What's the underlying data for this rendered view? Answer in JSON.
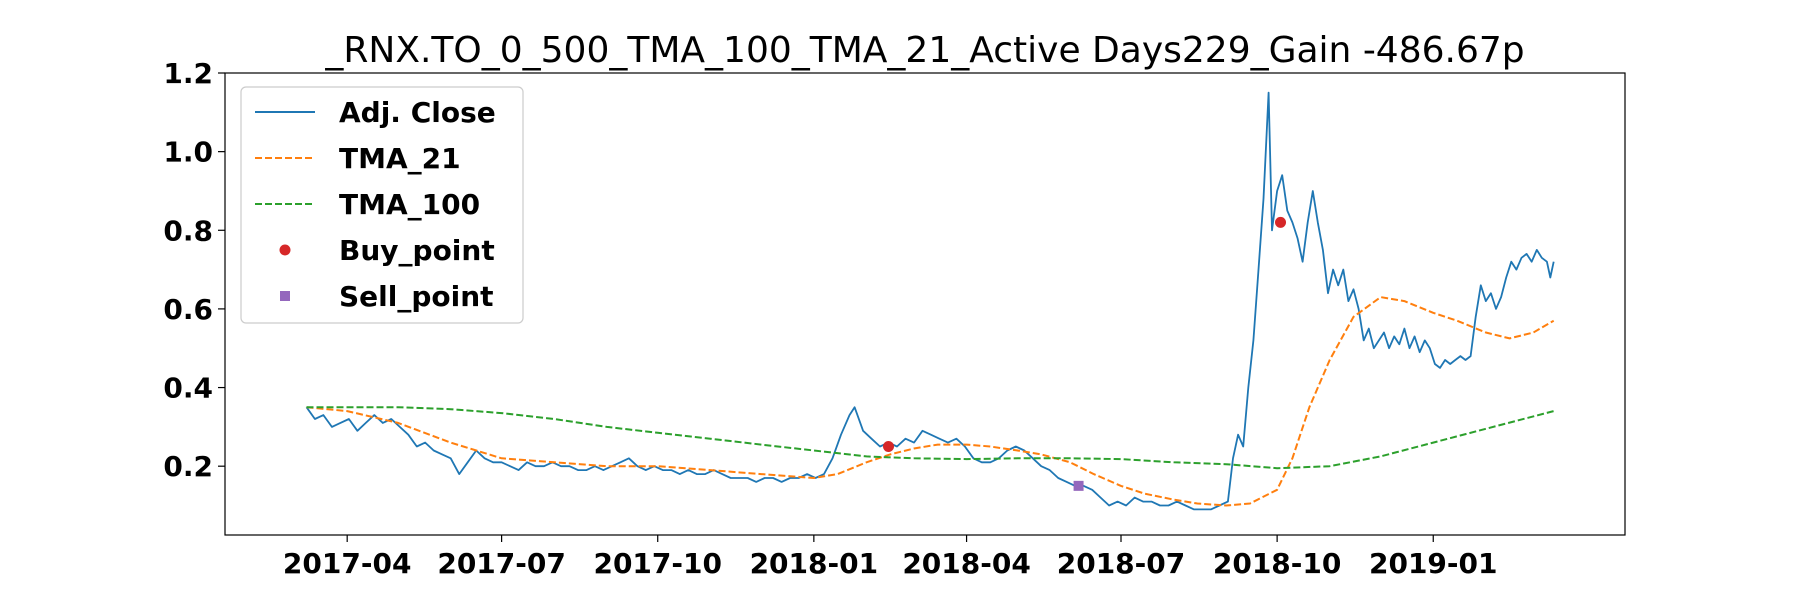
{
  "chart_data": {
    "type": "line",
    "title": "_RNX.TO_0_500_TMA_100_TMA_21_Active Days229_Gain -486.67p",
    "xlabel": "",
    "ylabel": "",
    "x_range": [
      "2017-01-19",
      "2019-04-24"
    ],
    "ylim": [
      0.025,
      1.2
    ],
    "y_ticks": [
      0.2,
      0.4,
      0.6,
      0.8,
      1.0,
      1.2
    ],
    "y_tick_labels": [
      "0.2",
      "0.4",
      "0.6",
      "0.8",
      "1.0",
      "1.2"
    ],
    "x_ticks": [
      "2017-04-01",
      "2017-07-01",
      "2017-10-01",
      "2018-01-01",
      "2018-04-01",
      "2018-07-01",
      "2018-10-01",
      "2019-01-01"
    ],
    "x_tick_labels": [
      "2017-04",
      "2017-07",
      "2017-10",
      "2018-01",
      "2018-04",
      "2018-07",
      "2018-10",
      "2019-01"
    ],
    "grid": false,
    "legend_position": "upper-left",
    "series": [
      {
        "name": "Adj. Close",
        "color": "#1f77b4",
        "style": "solid",
        "points": [
          [
            "2017-03-08",
            0.35
          ],
          [
            "2017-03-13",
            0.32
          ],
          [
            "2017-03-18",
            0.33
          ],
          [
            "2017-03-23",
            0.3
          ],
          [
            "2017-03-28",
            0.31
          ],
          [
            "2017-04-02",
            0.32
          ],
          [
            "2017-04-07",
            0.29
          ],
          [
            "2017-04-12",
            0.31
          ],
          [
            "2017-04-17",
            0.33
          ],
          [
            "2017-04-22",
            0.31
          ],
          [
            "2017-04-27",
            0.32
          ],
          [
            "2017-05-02",
            0.3
          ],
          [
            "2017-05-07",
            0.28
          ],
          [
            "2017-05-12",
            0.25
          ],
          [
            "2017-05-17",
            0.26
          ],
          [
            "2017-05-22",
            0.24
          ],
          [
            "2017-05-27",
            0.23
          ],
          [
            "2017-06-01",
            0.22
          ],
          [
            "2017-06-06",
            0.18
          ],
          [
            "2017-06-11",
            0.21
          ],
          [
            "2017-06-16",
            0.24
          ],
          [
            "2017-06-21",
            0.22
          ],
          [
            "2017-06-26",
            0.21
          ],
          [
            "2017-07-01",
            0.21
          ],
          [
            "2017-07-06",
            0.2
          ],
          [
            "2017-07-11",
            0.19
          ],
          [
            "2017-07-16",
            0.21
          ],
          [
            "2017-07-21",
            0.2
          ],
          [
            "2017-07-26",
            0.2
          ],
          [
            "2017-07-31",
            0.21
          ],
          [
            "2017-08-05",
            0.2
          ],
          [
            "2017-08-10",
            0.2
          ],
          [
            "2017-08-15",
            0.19
          ],
          [
            "2017-08-20",
            0.19
          ],
          [
            "2017-08-25",
            0.2
          ],
          [
            "2017-08-30",
            0.19
          ],
          [
            "2017-09-04",
            0.2
          ],
          [
            "2017-09-09",
            0.21
          ],
          [
            "2017-09-14",
            0.22
          ],
          [
            "2017-09-19",
            0.2
          ],
          [
            "2017-09-24",
            0.19
          ],
          [
            "2017-09-29",
            0.2
          ],
          [
            "2017-10-04",
            0.19
          ],
          [
            "2017-10-09",
            0.19
          ],
          [
            "2017-10-14",
            0.18
          ],
          [
            "2017-10-19",
            0.19
          ],
          [
            "2017-10-24",
            0.18
          ],
          [
            "2017-10-29",
            0.18
          ],
          [
            "2017-11-03",
            0.19
          ],
          [
            "2017-11-08",
            0.18
          ],
          [
            "2017-11-13",
            0.17
          ],
          [
            "2017-11-18",
            0.17
          ],
          [
            "2017-11-23",
            0.17
          ],
          [
            "2017-11-28",
            0.16
          ],
          [
            "2017-12-03",
            0.17
          ],
          [
            "2017-12-08",
            0.17
          ],
          [
            "2017-12-13",
            0.16
          ],
          [
            "2017-12-18",
            0.17
          ],
          [
            "2017-12-23",
            0.17
          ],
          [
            "2017-12-28",
            0.18
          ],
          [
            "2018-01-02",
            0.17
          ],
          [
            "2018-01-07",
            0.18
          ],
          [
            "2018-01-12",
            0.22
          ],
          [
            "2018-01-17",
            0.28
          ],
          [
            "2018-01-22",
            0.33
          ],
          [
            "2018-01-25",
            0.35
          ],
          [
            "2018-01-30",
            0.29
          ],
          [
            "2018-02-04",
            0.27
          ],
          [
            "2018-02-09",
            0.25
          ],
          [
            "2018-02-14",
            0.26
          ],
          [
            "2018-02-19",
            0.25
          ],
          [
            "2018-02-24",
            0.27
          ],
          [
            "2018-03-01",
            0.26
          ],
          [
            "2018-03-06",
            0.29
          ],
          [
            "2018-03-11",
            0.28
          ],
          [
            "2018-03-16",
            0.27
          ],
          [
            "2018-03-21",
            0.26
          ],
          [
            "2018-03-26",
            0.27
          ],
          [
            "2018-03-31",
            0.25
          ],
          [
            "2018-04-05",
            0.22
          ],
          [
            "2018-04-10",
            0.21
          ],
          [
            "2018-04-15",
            0.21
          ],
          [
            "2018-04-20",
            0.22
          ],
          [
            "2018-04-25",
            0.24
          ],
          [
            "2018-04-30",
            0.25
          ],
          [
            "2018-05-05",
            0.24
          ],
          [
            "2018-05-10",
            0.22
          ],
          [
            "2018-05-15",
            0.2
          ],
          [
            "2018-05-20",
            0.19
          ],
          [
            "2018-05-25",
            0.17
          ],
          [
            "2018-05-30",
            0.16
          ],
          [
            "2018-06-04",
            0.15
          ],
          [
            "2018-06-09",
            0.15
          ],
          [
            "2018-06-14",
            0.14
          ],
          [
            "2018-06-19",
            0.12
          ],
          [
            "2018-06-24",
            0.1
          ],
          [
            "2018-06-29",
            0.11
          ],
          [
            "2018-07-04",
            0.1
          ],
          [
            "2018-07-09",
            0.12
          ],
          [
            "2018-07-14",
            0.11
          ],
          [
            "2018-07-19",
            0.11
          ],
          [
            "2018-07-24",
            0.1
          ],
          [
            "2018-07-29",
            0.1
          ],
          [
            "2018-08-03",
            0.11
          ],
          [
            "2018-08-08",
            0.1
          ],
          [
            "2018-08-13",
            0.09
          ],
          [
            "2018-08-18",
            0.09
          ],
          [
            "2018-08-23",
            0.09
          ],
          [
            "2018-08-28",
            0.1
          ],
          [
            "2018-09-02",
            0.11
          ],
          [
            "2018-09-05",
            0.22
          ],
          [
            "2018-09-08",
            0.28
          ],
          [
            "2018-09-11",
            0.25
          ],
          [
            "2018-09-14",
            0.4
          ],
          [
            "2018-09-17",
            0.52
          ],
          [
            "2018-09-20",
            0.7
          ],
          [
            "2018-09-23",
            0.88
          ],
          [
            "2018-09-26",
            1.15
          ],
          [
            "2018-09-28",
            0.8
          ],
          [
            "2018-10-01",
            0.9
          ],
          [
            "2018-10-04",
            0.94
          ],
          [
            "2018-10-07",
            0.85
          ],
          [
            "2018-10-10",
            0.82
          ],
          [
            "2018-10-13",
            0.78
          ],
          [
            "2018-10-16",
            0.72
          ],
          [
            "2018-10-19",
            0.82
          ],
          [
            "2018-10-22",
            0.9
          ],
          [
            "2018-10-25",
            0.82
          ],
          [
            "2018-10-28",
            0.75
          ],
          [
            "2018-10-31",
            0.64
          ],
          [
            "2018-11-03",
            0.7
          ],
          [
            "2018-11-06",
            0.66
          ],
          [
            "2018-11-09",
            0.7
          ],
          [
            "2018-11-12",
            0.62
          ],
          [
            "2018-11-15",
            0.65
          ],
          [
            "2018-11-18",
            0.6
          ],
          [
            "2018-11-21",
            0.52
          ],
          [
            "2018-11-24",
            0.55
          ],
          [
            "2018-11-27",
            0.5
          ],
          [
            "2018-11-30",
            0.52
          ],
          [
            "2018-12-03",
            0.54
          ],
          [
            "2018-12-06",
            0.5
          ],
          [
            "2018-12-09",
            0.53
          ],
          [
            "2018-12-12",
            0.51
          ],
          [
            "2018-12-15",
            0.55
          ],
          [
            "2018-12-18",
            0.5
          ],
          [
            "2018-12-21",
            0.53
          ],
          [
            "2018-12-24",
            0.49
          ],
          [
            "2018-12-27",
            0.52
          ],
          [
            "2018-12-30",
            0.5
          ],
          [
            "2019-01-02",
            0.46
          ],
          [
            "2019-01-05",
            0.45
          ],
          [
            "2019-01-08",
            0.47
          ],
          [
            "2019-01-11",
            0.46
          ],
          [
            "2019-01-14",
            0.47
          ],
          [
            "2019-01-17",
            0.48
          ],
          [
            "2019-01-20",
            0.47
          ],
          [
            "2019-01-23",
            0.48
          ],
          [
            "2019-01-26",
            0.58
          ],
          [
            "2019-01-29",
            0.66
          ],
          [
            "2019-02-01",
            0.62
          ],
          [
            "2019-02-04",
            0.64
          ],
          [
            "2019-02-07",
            0.6
          ],
          [
            "2019-02-10",
            0.63
          ],
          [
            "2019-02-13",
            0.68
          ],
          [
            "2019-02-16",
            0.72
          ],
          [
            "2019-02-19",
            0.7
          ],
          [
            "2019-02-22",
            0.73
          ],
          [
            "2019-02-25",
            0.74
          ],
          [
            "2019-02-28",
            0.72
          ],
          [
            "2019-03-03",
            0.75
          ],
          [
            "2019-03-06",
            0.73
          ],
          [
            "2019-03-09",
            0.72
          ],
          [
            "2019-03-11",
            0.68
          ],
          [
            "2019-03-13",
            0.72
          ]
        ]
      },
      {
        "name": "TMA_21",
        "color": "#ff7f0e",
        "style": "dashed",
        "points": [
          [
            "2017-03-08",
            0.35
          ],
          [
            "2017-04-01",
            0.34
          ],
          [
            "2017-05-01",
            0.31
          ],
          [
            "2017-06-01",
            0.26
          ],
          [
            "2017-07-01",
            0.22
          ],
          [
            "2017-08-01",
            0.21
          ],
          [
            "2017-09-01",
            0.2
          ],
          [
            "2017-10-01",
            0.2
          ],
          [
            "2017-11-01",
            0.19
          ],
          [
            "2017-12-01",
            0.18
          ],
          [
            "2018-01-01",
            0.17
          ],
          [
            "2018-01-15",
            0.18
          ],
          [
            "2018-02-01",
            0.21
          ],
          [
            "2018-02-15",
            0.23
          ],
          [
            "2018-03-01",
            0.245
          ],
          [
            "2018-03-15",
            0.255
          ],
          [
            "2018-04-01",
            0.255
          ],
          [
            "2018-04-15",
            0.25
          ],
          [
            "2018-05-01",
            0.24
          ],
          [
            "2018-05-15",
            0.23
          ],
          [
            "2018-06-01",
            0.21
          ],
          [
            "2018-06-15",
            0.18
          ],
          [
            "2018-07-01",
            0.15
          ],
          [
            "2018-07-15",
            0.13
          ],
          [
            "2018-08-01",
            0.115
          ],
          [
            "2018-08-15",
            0.105
          ],
          [
            "2018-09-01",
            0.1
          ],
          [
            "2018-09-15",
            0.105
          ],
          [
            "2018-10-01",
            0.14
          ],
          [
            "2018-10-10",
            0.22
          ],
          [
            "2018-10-20",
            0.35
          ],
          [
            "2018-11-01",
            0.47
          ],
          [
            "2018-11-15",
            0.58
          ],
          [
            "2018-12-01",
            0.63
          ],
          [
            "2018-12-15",
            0.62
          ],
          [
            "2019-01-01",
            0.59
          ],
          [
            "2019-01-15",
            0.57
          ],
          [
            "2019-02-01",
            0.54
          ],
          [
            "2019-02-15",
            0.525
          ],
          [
            "2019-03-01",
            0.54
          ],
          [
            "2019-03-13",
            0.57
          ]
        ]
      },
      {
        "name": "TMA_100",
        "color": "#2ca02c",
        "style": "dashed",
        "points": [
          [
            "2017-03-08",
            0.35
          ],
          [
            "2017-05-01",
            0.35
          ],
          [
            "2017-06-01",
            0.345
          ],
          [
            "2017-07-01",
            0.335
          ],
          [
            "2017-08-01",
            0.32
          ],
          [
            "2017-09-01",
            0.3
          ],
          [
            "2017-10-01",
            0.285
          ],
          [
            "2017-11-01",
            0.27
          ],
          [
            "2017-12-01",
            0.255
          ],
          [
            "2018-01-01",
            0.24
          ],
          [
            "2018-02-01",
            0.225
          ],
          [
            "2018-03-01",
            0.22
          ],
          [
            "2018-04-01",
            0.218
          ],
          [
            "2018-05-01",
            0.22
          ],
          [
            "2018-06-01",
            0.22
          ],
          [
            "2018-07-01",
            0.218
          ],
          [
            "2018-08-01",
            0.21
          ],
          [
            "2018-09-01",
            0.205
          ],
          [
            "2018-10-01",
            0.195
          ],
          [
            "2018-11-01",
            0.2
          ],
          [
            "2018-12-01",
            0.225
          ],
          [
            "2019-01-01",
            0.26
          ],
          [
            "2019-02-01",
            0.295
          ],
          [
            "2019-03-13",
            0.34
          ]
        ]
      },
      {
        "name": "Buy_point",
        "color": "#d62728",
        "marker": "circle",
        "points": [
          [
            "2018-02-14",
            0.25
          ],
          [
            "2018-10-03",
            0.82
          ]
        ]
      },
      {
        "name": "Sell_point",
        "color": "#9467bd",
        "marker": "square",
        "points": [
          [
            "2018-06-06",
            0.15
          ]
        ]
      }
    ],
    "legend": [
      {
        "label": "Adj. Close",
        "color": "#1f77b4",
        "kind": "solid"
      },
      {
        "label": "TMA_21",
        "color": "#ff7f0e",
        "kind": "dashed"
      },
      {
        "label": "TMA_100",
        "color": "#2ca02c",
        "kind": "dashed"
      },
      {
        "label": "Buy_point",
        "color": "#d62728",
        "kind": "circle"
      },
      {
        "label": "Sell_point",
        "color": "#9467bd",
        "kind": "square"
      }
    ]
  }
}
